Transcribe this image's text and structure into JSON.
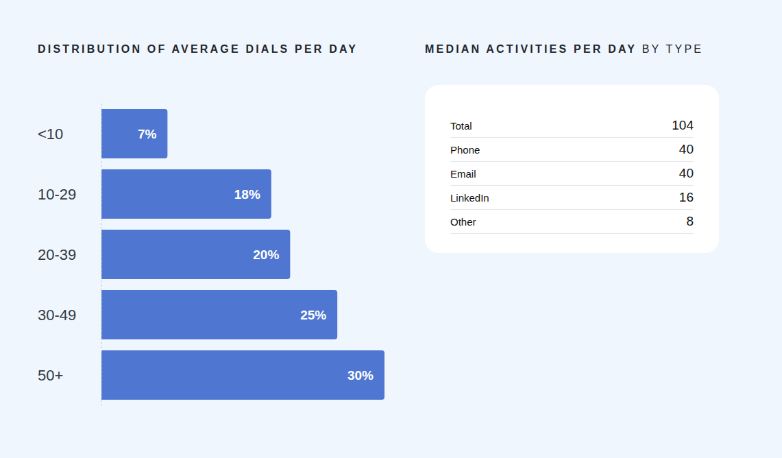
{
  "chart_data": {
    "type": "bar",
    "title": "DISTRIBUTION OF AVERAGE DIALS PER DAY",
    "orientation": "horizontal",
    "categories": [
      "<10",
      "10-29",
      "20-39",
      "30-49",
      "50+"
    ],
    "values": [
      7,
      18,
      20,
      25,
      30
    ],
    "value_labels": [
      "7%",
      "18%",
      "20%",
      "25%",
      "30%"
    ],
    "color": "#4f76d0",
    "xlim": [
      0,
      30
    ],
    "data_labels": true,
    "tick_labels": "y",
    "grid": false
  },
  "table": {
    "title": "MEDIAN ACTIVITIES PER DAY",
    "title_suffix": "BY TYPE",
    "rows": [
      [
        "Total",
        104
      ],
      [
        "Phone",
        40
      ],
      [
        "Email",
        40
      ],
      [
        "LinkedIn",
        16
      ],
      [
        "Other",
        8
      ]
    ]
  }
}
